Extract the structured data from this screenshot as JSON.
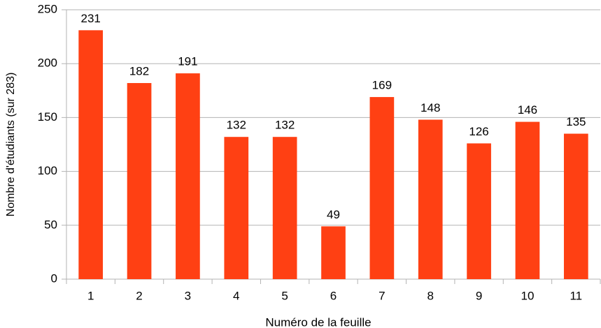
{
  "chart_data": {
    "type": "bar",
    "x_label": "Numéro de la feuille",
    "y_label": "Nombre d'étudiants (sur 283)",
    "categories": [
      "1",
      "2",
      "3",
      "4",
      "5",
      "6",
      "7",
      "8",
      "9",
      "10",
      "11"
    ],
    "values": [
      231,
      182,
      191,
      132,
      132,
      49,
      169,
      148,
      126,
      146,
      135
    ],
    "color": "#ff4013",
    "ylim": [
      0,
      250
    ],
    "yticks": [
      0,
      50,
      100,
      150,
      200,
      250
    ],
    "grid": true
  }
}
